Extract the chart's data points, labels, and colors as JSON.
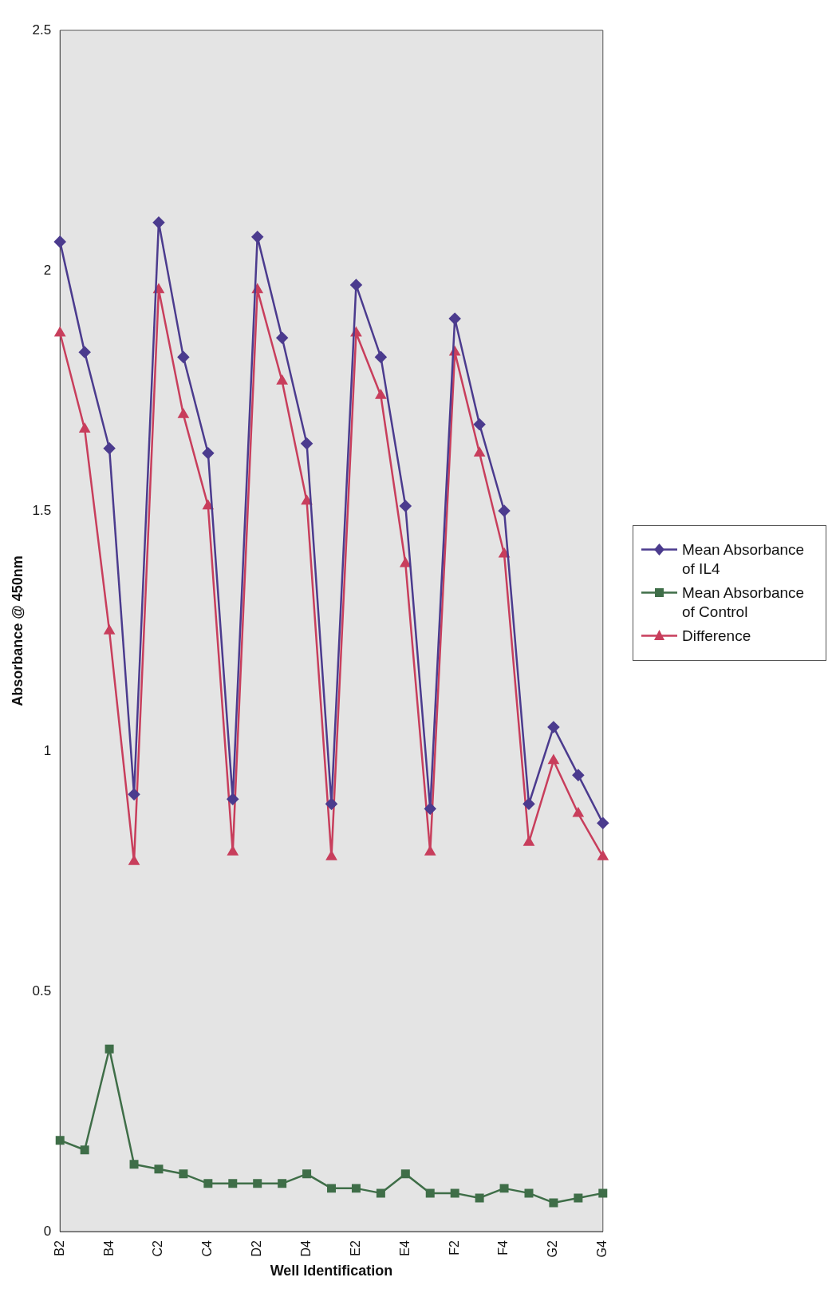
{
  "chart_data": {
    "type": "line",
    "xlabel": "Well Identification",
    "ylabel": "Absorbance @ 450nm",
    "categories": [
      "B2",
      null,
      "B4",
      null,
      "C2",
      null,
      "C4",
      null,
      "D2",
      null,
      "D4",
      null,
      "E2",
      null,
      "E4",
      null,
      "F2",
      null,
      "F4",
      null,
      "G2",
      null,
      "G4"
    ],
    "series": [
      {
        "name": "Mean Absorbance of IL4",
        "color": "#4b3b8e",
        "marker": "diamond",
        "values": [
          2.06,
          1.83,
          1.63,
          0.91,
          2.1,
          1.82,
          1.62,
          0.9,
          2.07,
          1.86,
          1.64,
          0.89,
          1.97,
          1.82,
          1.51,
          0.88,
          1.9,
          1.68,
          1.5,
          0.89,
          1.05,
          0.95,
          0.85
        ]
      },
      {
        "name": "Mean Absorbance of Control",
        "color": "#3f6e48",
        "marker": "square",
        "values": [
          0.19,
          0.17,
          0.38,
          0.14,
          0.13,
          0.12,
          0.1,
          0.1,
          0.1,
          0.1,
          0.12,
          0.09,
          0.09,
          0.08,
          0.12,
          0.08,
          0.08,
          0.07,
          0.09,
          0.08,
          0.06,
          0.07,
          0.08
        ]
      },
      {
        "name": "Difference",
        "color": "#c83e5c",
        "marker": "triangle",
        "values": [
          1.87,
          1.67,
          1.25,
          0.77,
          1.96,
          1.7,
          1.51,
          0.79,
          1.96,
          1.77,
          1.52,
          0.78,
          1.87,
          1.74,
          1.39,
          0.79,
          1.83,
          1.62,
          1.41,
          0.81,
          0.98,
          0.87,
          0.78
        ]
      }
    ],
    "ylim": [
      0,
      2.5
    ],
    "yticks": [
      0,
      0.5,
      1,
      1.5,
      2,
      2.5
    ],
    "grid": false,
    "legend": "right"
  }
}
